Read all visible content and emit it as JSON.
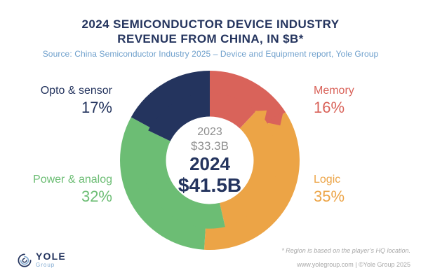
{
  "header": {
    "title_line1": "2024 SEMICONDUCTOR DEVICE INDUSTRY",
    "title_line2": "REVENUE FROM CHINA, IN $B*",
    "source_line": "Source: China Semiconductor Industry 2025 – Device and Equipment report, Yole Group"
  },
  "chart_data": {
    "type": "pie",
    "subtype": "donut-two-rings",
    "title": "2024 Semiconductor device industry revenue from China, in $B",
    "unit": "$B",
    "start_angle_deg": 0,
    "direction": "clockwise",
    "center_labels": {
      "prev_year": "2023",
      "prev_value": "$33.3B",
      "current_year": "2024",
      "current_value": "$41.5B"
    },
    "total_2023_billion": 33.3,
    "total_2024_billion": 41.5,
    "segments": [
      {
        "label": "Memory",
        "pct_label": "16%",
        "share_2024_pct": 16,
        "share_2023_pct_est": 12.0,
        "color": "#d9635a"
      },
      {
        "label": "Logic",
        "pct_label": "35%",
        "share_2024_pct": 35,
        "share_2023_pct_est": 34.4,
        "color": "#eca446"
      },
      {
        "label": "Power & analog",
        "pct_label": "32%",
        "share_2024_pct": 32,
        "share_2023_pct_est": 35.8,
        "color": "#6cbd74"
      },
      {
        "label": "Opto & sensor",
        "pct_label": "17%",
        "share_2024_pct": 17,
        "share_2023_pct_est": 17.8,
        "color": "#24345e"
      }
    ],
    "geometry": {
      "outer_radius": 128,
      "ring_split_radius": 97,
      "hole_radius": 62.5
    },
    "legend_position": "around"
  },
  "footer": {
    "logo_text": "YOLE",
    "logo_subtext": "Group",
    "note": "* Region is based on the player’s HQ location.",
    "credit": "www.yolegroup.com | ©Yole Group 2025"
  },
  "palette": {
    "title_navy": "#24345e",
    "subtitle_blue": "#6fa0cc",
    "center_gray": "#8f8f8f",
    "footer_gray": "#a8a8a8",
    "logo_light_blue": "#7fa8d0",
    "background": "#ffffff"
  }
}
